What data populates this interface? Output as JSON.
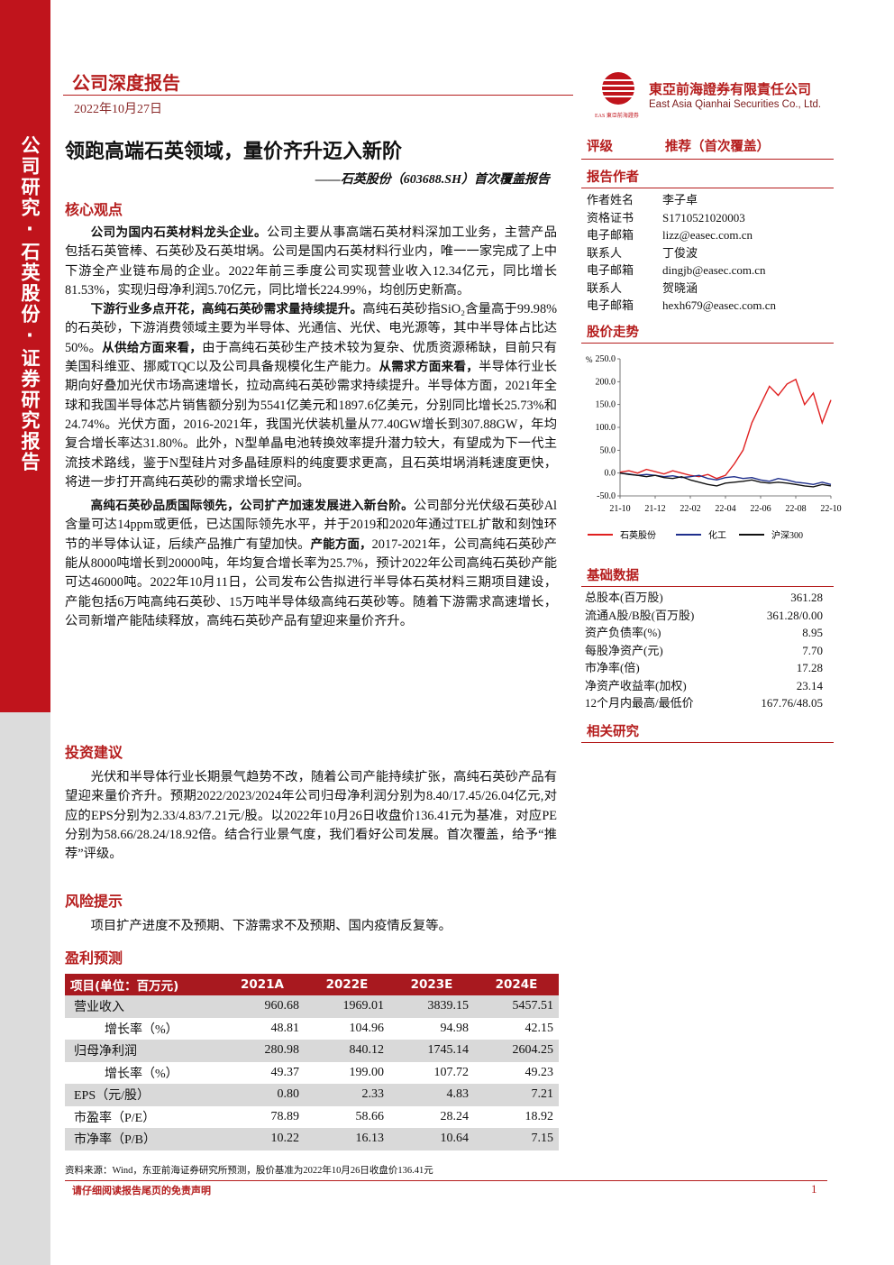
{
  "header": {
    "report_type": "公司深度报告",
    "date": "2022年10月27日",
    "company_cn": "東亞前海證券有限責任公司",
    "company_en": "East Asia Qianhai Securities Co., Ltd.",
    "logo_text": "EAS 東亞前海證券"
  },
  "sidebar": "公司研究·石英股份·证券研究报告",
  "title": "领跑高端石英领域，量价齐升迈入新阶",
  "subtitle": "——石英股份（603688.SH）首次覆盖报告",
  "sections": [
    {
      "heading": "核心观点",
      "paragraphs": [
        [
          {
            "text": "公司为国内石英材料龙头企业。",
            "strong": true
          },
          {
            "text": "公司主要从事高端石英材料深加工业务，主营产品包括石英管棒、石英砂及石英坩埚。公司是国内石英材料行业内，唯一一家完成了上中下游全产业链布局的企业。2022年前三季度公司实现营业收入12.34亿元，同比增长81.53%，实现归母净利润5.70亿元，同比增长224.99%，均创历史新高。",
            "strong": false
          }
        ],
        [
          {
            "text": "下游行业多点开花，高纯石英砂需求量持续提升。",
            "strong": true
          },
          {
            "text": "高纯石英砂指SiO₂含量高于99.98%的石英砂，下游消费领域主要为半导体、光通信、光伏、电光源等，其中半导体占比达50%。",
            "strong": false
          },
          {
            "text": "从供给方面来看，",
            "strong": true
          },
          {
            "text": "由于高纯石英砂生产技术较为复杂、优质资源稀缺，目前只有美国科维亚、挪威TQC以及公司具备规模化生产能力。",
            "strong": false
          },
          {
            "text": "从需求方面来看，",
            "strong": true
          },
          {
            "text": "半导体行业长期向好叠加光伏市场高速增长，拉动高纯石英砂需求持续提升。半导体方面，2021年全球和我国半导体芯片销售额分别为5541亿美元和1897.6亿美元，分别同比增长25.73%和24.74%。光伏方面，2016-2021年，我国光伏装机量从77.40GW增长到307.88GW，年均复合增长率达31.80%。此外，N型单晶电池转换效率提升潜力较大，有望成为下一代主流技术路线，鉴于N型硅片对多晶硅原料的纯度要求更高，且石英坩埚消耗速度更快，将进一步打开高纯石英砂的需求增长空间。",
            "strong": false
          }
        ],
        [
          {
            "text": "高纯石英砂品质国际领先，公司扩产加速发展进入新台阶。",
            "strong": true
          },
          {
            "text": "公司部分光伏级石英砂Al含量可达14ppm或更低，已达国际领先水平，并于2019和2020年通过TEL扩散和刻蚀环节的半导体认证，后续产品推广有望加快。",
            "strong": false
          },
          {
            "text": "产能方面，",
            "strong": true
          },
          {
            "text": "2017-2021年，公司高纯石英砂产能从8000吨增长到20000吨，年均复合增长率为25.7%，预计2022年公司高纯石英砂产能可达46000吨。2022年10月11日，公司发布公告拟进行半导体石英材料三期项目建设，产能包括6万吨高纯石英砂、15万吨半导体级高纯石英砂等。随着下游需求高速增长，公司新增产能陆续释放，高纯石英砂产品有望迎来量价齐升。",
            "strong": false
          }
        ]
      ]
    },
    {
      "heading": "投资建议",
      "paragraphs": [
        [
          {
            "text": "光伏和半导体行业长期景气趋势不改，随着公司产能持续扩张，高纯石英砂产品有望迎来量价齐升。预期2022/2023/2024年公司归母净利润分别为8.40/17.45/26.04亿元,对应的EPS分别为2.33/4.83/7.21元/股。以2022年10月26日收盘价136.41元为基准，对应PE分别为58.66/28.24/18.92倍。结合行业景气度，我们看好公司发展。首次覆盖，给予“推荐”评级。",
            "strong": false
          }
        ]
      ]
    },
    {
      "heading": "风险提示",
      "paragraphs": [
        [
          {
            "text": "项目扩产进度不及预期、下游需求不及预期、国内疫情反复等。",
            "strong": false
          }
        ]
      ]
    }
  ],
  "rating": {
    "label": "评级",
    "value": "推荐（首次覆盖）"
  },
  "authors": {
    "heading": "报告作者",
    "rows": [
      [
        "作者姓名",
        "李子卓"
      ],
      [
        "资格证书",
        "S1710521020003"
      ],
      [
        "电子邮箱",
        "lizz@easec.com.cn"
      ],
      [
        "联系人",
        "丁俊波"
      ],
      [
        "电子邮箱",
        "dingjb@easec.com.cn"
      ],
      [
        "联系人",
        "贺晓涵"
      ],
      [
        "电子邮箱",
        "hexh679@easec.com.cn"
      ]
    ]
  },
  "chart_data": {
    "type": "line",
    "title": "股价走势",
    "y_unit": "%",
    "categories": [
      "21-10",
      null,
      null,
      null,
      "21-12",
      null,
      null,
      null,
      "22-02",
      null,
      null,
      null,
      "22-04",
      null,
      null,
      null,
      "22-06",
      null,
      null,
      null,
      "22-08",
      null,
      null,
      null,
      "22-10"
    ],
    "series": [
      {
        "name": "石英股份",
        "color": "#e02020",
        "values": [
          2,
          5,
          0,
          8,
          3,
          -2,
          5,
          0,
          -5,
          -8,
          -3,
          -12,
          -5,
          20,
          50,
          110,
          150,
          190,
          170,
          195,
          205,
          150,
          175,
          110,
          160
        ]
      },
      {
        "name": "化工",
        "color": "#1f2f8c",
        "values": [
          0,
          -2,
          -5,
          -3,
          -5,
          -8,
          -6,
          -10,
          -8,
          -5,
          -12,
          -15,
          -10,
          -8,
          -12,
          -10,
          -15,
          -18,
          -12,
          -15,
          -20,
          -22,
          -25,
          -20,
          -25
        ]
      },
      {
        "name": "沪深300",
        "color": "#111111",
        "values": [
          0,
          -3,
          -5,
          -8,
          -5,
          -10,
          -12,
          -8,
          -15,
          -20,
          -25,
          -28,
          -22,
          -20,
          -18,
          -15,
          -20,
          -22,
          -20,
          -22,
          -25,
          -28,
          -30,
          -25,
          -28
        ]
      }
    ],
    "ylim": [
      -50,
      250
    ],
    "yticks": [
      {
        "value": -50,
        "label": "-50.0"
      },
      {
        "value": 0,
        "label": "0.0"
      },
      {
        "value": 50,
        "label": "50.0"
      },
      {
        "value": 100,
        "label": "100.0"
      },
      {
        "value": 150,
        "label": "150.0"
      },
      {
        "value": 200,
        "label": "200.0"
      },
      {
        "value": 250,
        "label": "250.0"
      }
    ]
  },
  "basic_data": {
    "heading": "基础数据",
    "rows": [
      [
        "总股本(百万股)",
        "361.28"
      ],
      [
        "流通A股/B股(百万股)",
        "361.28/0.00"
      ],
      [
        "资产负债率(%)",
        "8.95"
      ],
      [
        "每股净资产(元)",
        "7.70"
      ],
      [
        "市净率(倍)",
        "17.28"
      ],
      [
        "净资产收益率(加权)",
        "23.14"
      ],
      [
        "12个月内最高/最低价",
        "167.76/48.05"
      ]
    ]
  },
  "related": {
    "heading": "相关研究"
  },
  "forecast": {
    "heading": "盈利预测",
    "header": [
      "项目(单位：百万元)",
      "2021A",
      "2022E",
      "2023E",
      "2024E"
    ],
    "rows": [
      [
        "营业收入",
        "960.68",
        "1969.01",
        "3839.15",
        "5457.51"
      ],
      [
        "增长率（%）",
        "48.81",
        "104.96",
        "94.98",
        "42.15"
      ],
      [
        "归母净利润",
        "280.98",
        "840.12",
        "1745.14",
        "2604.25"
      ],
      [
        "增长率（%）",
        "49.37",
        "199.00",
        "107.72",
        "49.23"
      ],
      [
        "EPS（元/股）",
        "0.80",
        "2.33",
        "4.83",
        "7.21"
      ],
      [
        "市盈率（P/E）",
        "78.89",
        "58.66",
        "28.24",
        "18.92"
      ],
      [
        "市净率（P/B）",
        "10.22",
        "16.13",
        "10.64",
        "7.15"
      ]
    ]
  },
  "footer": {
    "source": "资料来源：Wind，东亚前海证券研究所预测，股价基准为2022年10月26日收盘价136.41元",
    "disclaimer": "请仔细阅读报告尾页的免责声明",
    "page": "1"
  }
}
